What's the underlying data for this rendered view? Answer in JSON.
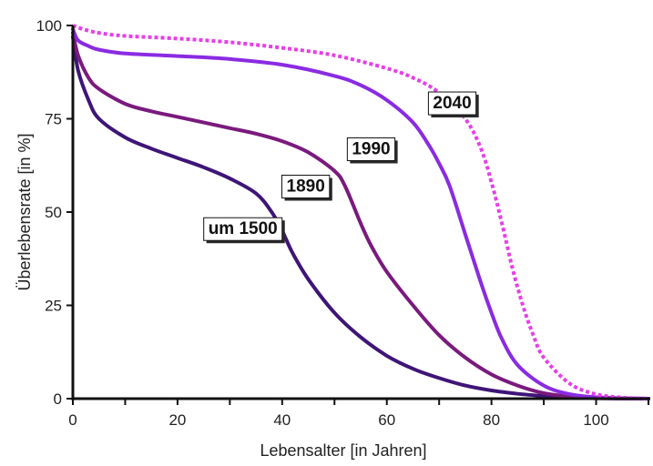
{
  "chart_data": {
    "type": "line",
    "xlabel": "Lebensalter [in Jahren]",
    "ylabel": "Überlebensrate [in %]",
    "xlim": [
      0,
      110
    ],
    "ylim": [
      0,
      100
    ],
    "x_ticks": [
      0,
      20,
      40,
      60,
      80,
      100
    ],
    "y_ticks": [
      0,
      25,
      50,
      75,
      100
    ],
    "grid": false,
    "series": [
      {
        "name": "um 1500",
        "color": "#3e1577",
        "dashed": false,
        "x": [
          0,
          1,
          3,
          5,
          10,
          15,
          20,
          25,
          30,
          35,
          38,
          40,
          42,
          45,
          50,
          55,
          60,
          65,
          70,
          75,
          80,
          85,
          90,
          95,
          100,
          110
        ],
        "y": [
          97,
          88,
          80,
          75,
          70,
          67,
          64.5,
          62,
          59,
          55,
          50,
          45,
          39,
          32,
          23,
          16.5,
          11.5,
          8,
          5.5,
          3.5,
          2.2,
          1.3,
          0.7,
          0.3,
          0.1,
          0
        ]
      },
      {
        "name": "1890",
        "color": "#7a1a7d",
        "dashed": false,
        "x": [
          0,
          1,
          3,
          5,
          10,
          15,
          20,
          25,
          30,
          35,
          40,
          45,
          50,
          52,
          55,
          57,
          60,
          65,
          70,
          75,
          80,
          85,
          90,
          95,
          100,
          110
        ],
        "y": [
          98,
          92,
          86,
          83,
          79,
          77,
          75.5,
          74,
          72.5,
          71,
          69,
          66,
          61,
          57,
          47,
          41,
          34,
          25,
          17,
          11,
          6.5,
          3.5,
          1.5,
          0.6,
          0.2,
          0
        ]
      },
      {
        "name": "1990",
        "color": "#8a2be2",
        "dashed": false,
        "x": [
          0,
          1,
          3,
          5,
          10,
          20,
          30,
          40,
          50,
          55,
          60,
          65,
          68,
          70,
          72,
          75,
          78,
          80,
          82,
          85,
          90,
          95,
          100,
          105,
          110
        ],
        "y": [
          99,
          96,
          94.5,
          93.5,
          92.5,
          91.8,
          91,
          89.5,
          86.5,
          84,
          80,
          74,
          68,
          63,
          57,
          44,
          31,
          23,
          16,
          9,
          3.5,
          1.2,
          0.4,
          0.1,
          0
        ]
      },
      {
        "name": "2040",
        "color": "#e83ee8",
        "dashed": true,
        "x": [
          0,
          2,
          5,
          10,
          20,
          30,
          40,
          50,
          60,
          65,
          70,
          75,
          78,
          80,
          82,
          84,
          86,
          88,
          90,
          95,
          100,
          105,
          110
        ],
        "y": [
          100,
          99,
          98,
          97.2,
          96.5,
          95.5,
          94,
          92,
          88.5,
          86,
          82,
          75,
          67,
          58,
          47,
          35,
          25,
          17,
          11,
          4,
          1.2,
          0.3,
          0
        ]
      }
    ]
  },
  "series_labels": [
    {
      "text": "um 1500",
      "at_x": 32.5,
      "at_y": 45.8
    },
    {
      "text": "1890",
      "at_x": 44.5,
      "at_y": 57.2
    },
    {
      "text": "1990",
      "at_x": 57,
      "at_y": 67.2
    },
    {
      "text": "2040",
      "at_x": 72.5,
      "at_y": 79.5
    }
  ]
}
